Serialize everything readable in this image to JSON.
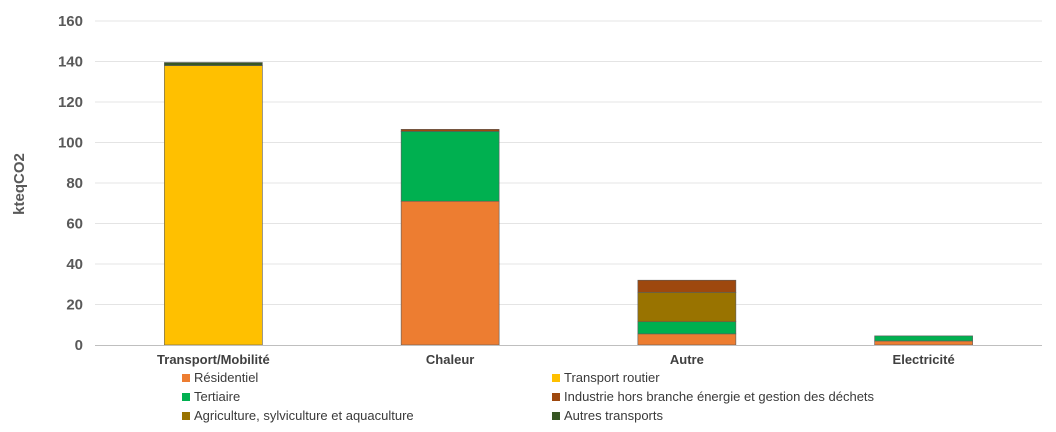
{
  "chart_data": {
    "type": "bar",
    "stacked": true,
    "title": "",
    "xlabel": "",
    "ylabel": "kteqCO2",
    "ylim": [
      0,
      160
    ],
    "yticks": [
      0,
      20,
      40,
      60,
      80,
      100,
      120,
      140,
      160
    ],
    "grid": true,
    "legend_position": "bottom",
    "categories": [
      "Transport/Mobilité",
      "Chaleur",
      "Autre",
      "Electricité"
    ],
    "series": [
      {
        "name": "Résidentiel",
        "color": "#ED7D31",
        "values": [
          0,
          71,
          5.5,
          2
        ]
      },
      {
        "name": "Tertiaire",
        "color": "#00B050",
        "values": [
          0,
          34.5,
          6,
          2.5
        ]
      },
      {
        "name": "Agriculture, sylviculture et aquaculture",
        "color": "#997300",
        "values": [
          0,
          0,
          14.5,
          0
        ]
      },
      {
        "name": "Transport routier",
        "color": "#FFC000",
        "values": [
          138,
          0,
          0,
          0
        ]
      },
      {
        "name": "Industrie hors branche énergie et gestion des déchets",
        "color": "#9E480E",
        "values": [
          0,
          1,
          6,
          0
        ]
      },
      {
        "name": "Autres transports",
        "color": "#375623",
        "values": [
          1.5,
          0,
          0,
          0
        ]
      }
    ]
  }
}
